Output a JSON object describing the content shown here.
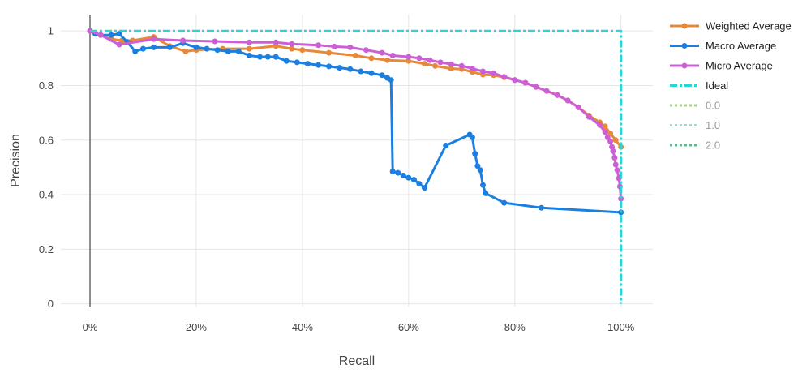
{
  "chart_data": {
    "type": "line",
    "xlabel": "Recall",
    "ylabel": "Precision",
    "xlim": [
      -0.055,
      1.06
    ],
    "ylim": [
      -0.01,
      1.06
    ],
    "x_ticks": [
      0,
      0.2,
      0.4,
      0.6,
      0.8,
      1.0
    ],
    "x_tick_labels": [
      "0%",
      "20%",
      "40%",
      "60%",
      "80%",
      "100%"
    ],
    "y_ticks": [
      0,
      0.2,
      0.4,
      0.6,
      0.8,
      1.0
    ],
    "y_tick_labels": [
      "0",
      "0.2",
      "0.4",
      "0.6",
      "0.8",
      "1"
    ],
    "grid": true,
    "legend_position": "right",
    "series": [
      {
        "name": "Weighted Average",
        "color": "#e8893a",
        "style": "line+markers",
        "points": [
          [
            0,
            1
          ],
          [
            0.02,
            0.985
          ],
          [
            0.04,
            0.97
          ],
          [
            0.06,
            0.965
          ],
          [
            0.08,
            0.965
          ],
          [
            0.12,
            0.978
          ],
          [
            0.15,
            0.945
          ],
          [
            0.18,
            0.925
          ],
          [
            0.2,
            0.93
          ],
          [
            0.25,
            0.935
          ],
          [
            0.3,
            0.935
          ],
          [
            0.35,
            0.945
          ],
          [
            0.38,
            0.935
          ],
          [
            0.4,
            0.93
          ],
          [
            0.45,
            0.92
          ],
          [
            0.5,
            0.91
          ],
          [
            0.53,
            0.9
          ],
          [
            0.56,
            0.893
          ],
          [
            0.6,
            0.89
          ],
          [
            0.63,
            0.88
          ],
          [
            0.65,
            0.872
          ],
          [
            0.68,
            0.862
          ],
          [
            0.7,
            0.86
          ],
          [
            0.72,
            0.85
          ],
          [
            0.74,
            0.84
          ],
          [
            0.76,
            0.838
          ],
          [
            0.78,
            0.83
          ],
          [
            0.8,
            0.82
          ],
          [
            0.82,
            0.81
          ],
          [
            0.84,
            0.795
          ],
          [
            0.86,
            0.78
          ],
          [
            0.88,
            0.765
          ],
          [
            0.9,
            0.745
          ],
          [
            0.92,
            0.72
          ],
          [
            0.94,
            0.69
          ],
          [
            0.96,
            0.665
          ],
          [
            0.97,
            0.65
          ],
          [
            0.98,
            0.625
          ],
          [
            0.99,
            0.6
          ],
          [
            1.0,
            0.575
          ]
        ]
      },
      {
        "name": "Macro Average",
        "color": "#1a7fe0",
        "style": "line+markers",
        "points": [
          [
            0,
            1
          ],
          [
            0.01,
            0.99
          ],
          [
            0.02,
            0.985
          ],
          [
            0.04,
            0.985
          ],
          [
            0.055,
            0.99
          ],
          [
            0.07,
            0.96
          ],
          [
            0.085,
            0.925
          ],
          [
            0.1,
            0.935
          ],
          [
            0.12,
            0.94
          ],
          [
            0.15,
            0.94
          ],
          [
            0.175,
            0.955
          ],
          [
            0.2,
            0.94
          ],
          [
            0.22,
            0.935
          ],
          [
            0.24,
            0.93
          ],
          [
            0.26,
            0.925
          ],
          [
            0.28,
            0.925
          ],
          [
            0.3,
            0.91
          ],
          [
            0.32,
            0.905
          ],
          [
            0.335,
            0.905
          ],
          [
            0.35,
            0.905
          ],
          [
            0.37,
            0.89
          ],
          [
            0.39,
            0.885
          ],
          [
            0.41,
            0.88
          ],
          [
            0.43,
            0.875
          ],
          [
            0.45,
            0.87
          ],
          [
            0.47,
            0.865
          ],
          [
            0.49,
            0.86
          ],
          [
            0.51,
            0.852
          ],
          [
            0.53,
            0.845
          ],
          [
            0.55,
            0.838
          ],
          [
            0.56,
            0.828
          ],
          [
            0.567,
            0.82
          ],
          [
            0.57,
            0.485
          ],
          [
            0.58,
            0.48
          ],
          [
            0.59,
            0.47
          ],
          [
            0.6,
            0.462
          ],
          [
            0.61,
            0.455
          ],
          [
            0.62,
            0.44
          ],
          [
            0.63,
            0.425
          ],
          [
            0.67,
            0.58
          ],
          [
            0.715,
            0.62
          ],
          [
            0.72,
            0.61
          ],
          [
            0.725,
            0.55
          ],
          [
            0.73,
            0.505
          ],
          [
            0.735,
            0.49
          ],
          [
            0.74,
            0.435
          ],
          [
            0.745,
            0.405
          ],
          [
            0.78,
            0.37
          ],
          [
            0.85,
            0.352
          ],
          [
            1.0,
            0.335
          ]
        ]
      },
      {
        "name": "Micro Average",
        "color": "#cc5fd6",
        "style": "line+markers",
        "points": [
          [
            0,
            1
          ],
          [
            0.02,
            0.985
          ],
          [
            0.055,
            0.95
          ],
          [
            0.12,
            0.97
          ],
          [
            0.175,
            0.965
          ],
          [
            0.235,
            0.962
          ],
          [
            0.3,
            0.958
          ],
          [
            0.35,
            0.958
          ],
          [
            0.38,
            0.952
          ],
          [
            0.43,
            0.948
          ],
          [
            0.46,
            0.943
          ],
          [
            0.49,
            0.94
          ],
          [
            0.52,
            0.93
          ],
          [
            0.55,
            0.92
          ],
          [
            0.57,
            0.91
          ],
          [
            0.6,
            0.905
          ],
          [
            0.62,
            0.9
          ],
          [
            0.64,
            0.893
          ],
          [
            0.66,
            0.885
          ],
          [
            0.68,
            0.878
          ],
          [
            0.7,
            0.872
          ],
          [
            0.72,
            0.862
          ],
          [
            0.74,
            0.852
          ],
          [
            0.76,
            0.845
          ],
          [
            0.78,
            0.832
          ],
          [
            0.8,
            0.82
          ],
          [
            0.82,
            0.81
          ],
          [
            0.84,
            0.795
          ],
          [
            0.86,
            0.78
          ],
          [
            0.88,
            0.765
          ],
          [
            0.9,
            0.745
          ],
          [
            0.92,
            0.72
          ],
          [
            0.94,
            0.685
          ],
          [
            0.96,
            0.655
          ],
          [
            0.97,
            0.63
          ],
          [
            0.975,
            0.61
          ],
          [
            0.98,
            0.595
          ],
          [
            0.983,
            0.575
          ],
          [
            0.985,
            0.56
          ],
          [
            0.988,
            0.535
          ],
          [
            0.99,
            0.51
          ],
          [
            0.993,
            0.49
          ],
          [
            0.996,
            0.46
          ],
          [
            0.998,
            0.43
          ],
          [
            1.0,
            0.385
          ]
        ]
      },
      {
        "name": "Ideal",
        "color": "#2dd4d4",
        "style": "dashdot",
        "points": [
          [
            0,
            1
          ],
          [
            1,
            1
          ],
          [
            1,
            0
          ]
        ]
      },
      {
        "name": "0.0",
        "color": "#a9d18e",
        "style": "dotted",
        "points": []
      },
      {
        "name": "1.0",
        "color": "#9fd8d3",
        "style": "dotted",
        "points": []
      },
      {
        "name": "2.0",
        "color": "#5fb88a",
        "style": "dotted",
        "points": []
      }
    ]
  }
}
